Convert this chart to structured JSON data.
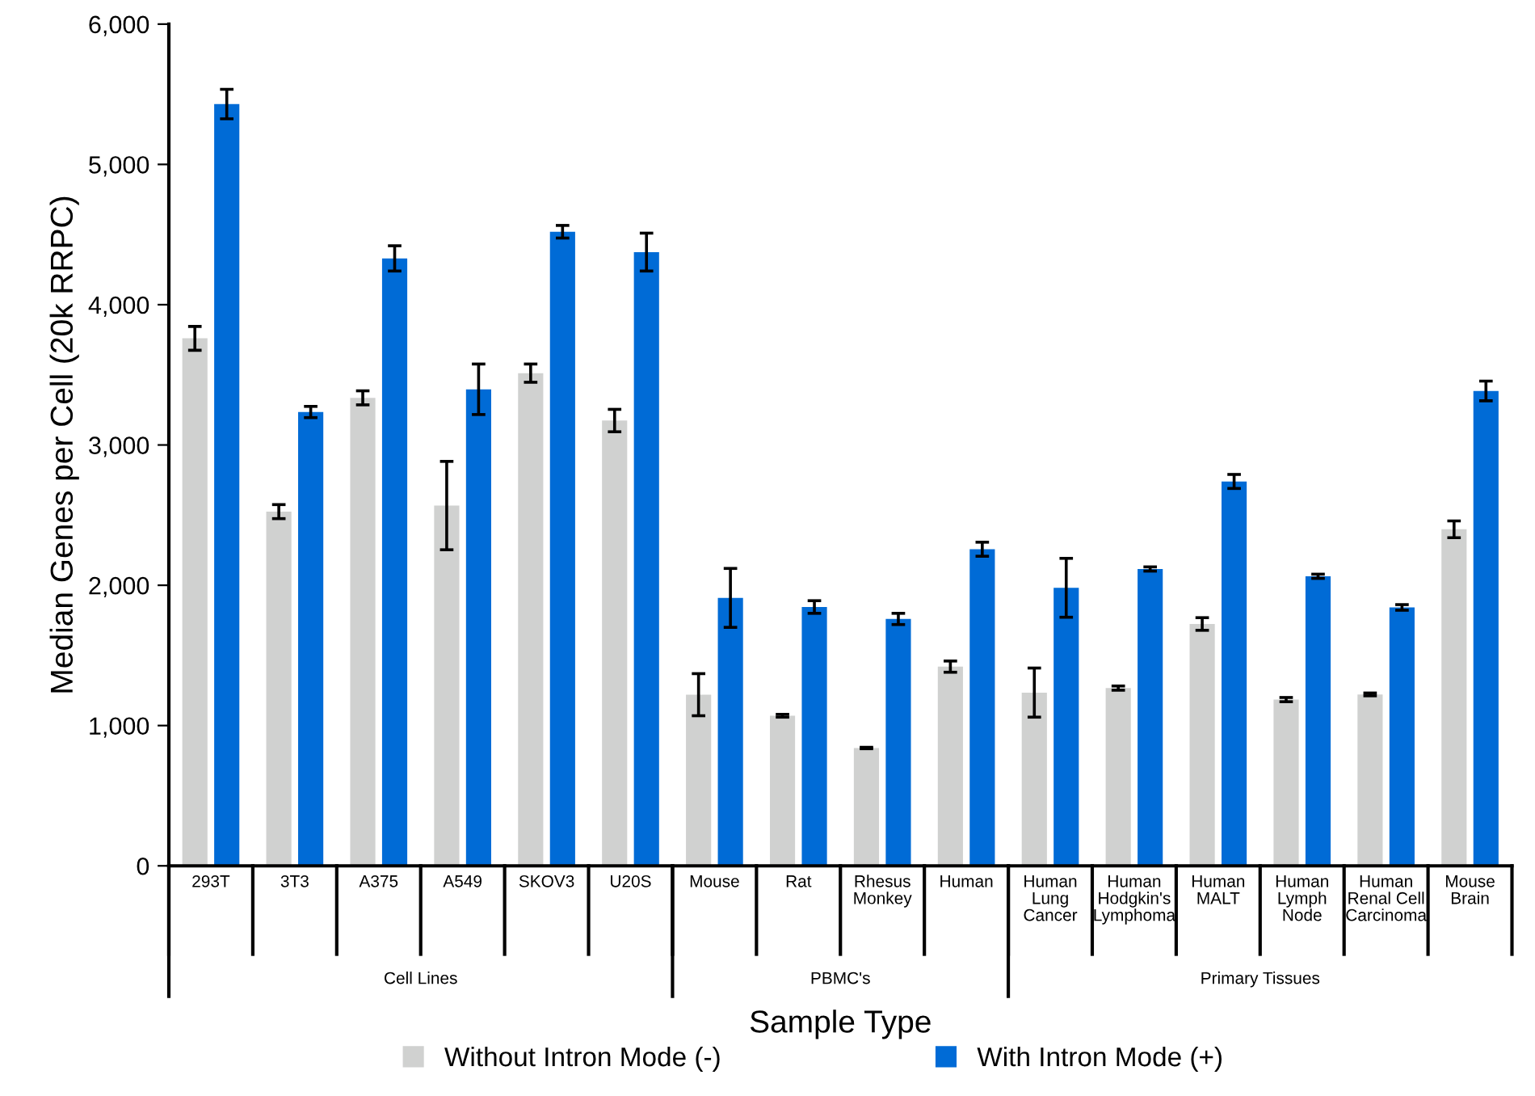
{
  "chart_data": {
    "type": "bar",
    "xlabel": "Sample Type",
    "ylabel": "Median Genes per Cell (20k RRPC)",
    "categories": [
      "293T",
      "3T3",
      "A375",
      "A549",
      "SKOV3",
      "U20S",
      "Mouse",
      "Rat",
      "Rhesus\nMonkey",
      "Human",
      "Human\nLung\nCancer",
      "Human\nHodgkin's\nLymphoma",
      "Human\nMALT",
      "Human\nLymph\nNode",
      "Human\nRenal Cell\nCarcinoma",
      "Mouse\nBrain"
    ],
    "series": [
      {
        "name": "Without Intron Mode (-)",
        "color": "#d0d1d0",
        "values": [
          3760,
          2525,
          3336,
          2568,
          3512,
          3174,
          1220,
          1070,
          840,
          1420,
          1235,
          1267,
          1724,
          1185,
          1222,
          2399
        ],
        "errors": [
          85,
          50,
          50,
          315,
          65,
          80,
          150,
          10,
          5,
          40,
          175,
          15,
          45,
          15,
          10,
          60
        ]
      },
      {
        "name": "With Intron Mode (+)",
        "color": "#006bd6",
        "values": [
          5430,
          3235,
          4330,
          3397,
          4520,
          4375,
          1910,
          1845,
          1760,
          2257,
          1982,
          2116,
          2740,
          2064,
          1842,
          3385
        ],
        "errors": [
          105,
          40,
          90,
          180,
          45,
          135,
          210,
          45,
          40,
          50,
          210,
          15,
          50,
          15,
          20,
          70
        ]
      }
    ],
    "ylim": [
      0,
      6000
    ],
    "yticks": [
      0,
      {
        "value": 1000,
        "label": "1,000"
      },
      {
        "value": 2000,
        "label": "2,000"
      },
      {
        "value": 3000,
        "label": "3,000"
      },
      {
        "value": 4000,
        "label": "4,000"
      },
      {
        "value": 5000,
        "label": "5,000"
      },
      {
        "value": 6000,
        "label": "6,000"
      }
    ],
    "annotations": [
      "Cell Lines",
      "PBMC's",
      "Primary Tissues"
    ],
    "grid": false,
    "legend": "bottom"
  }
}
